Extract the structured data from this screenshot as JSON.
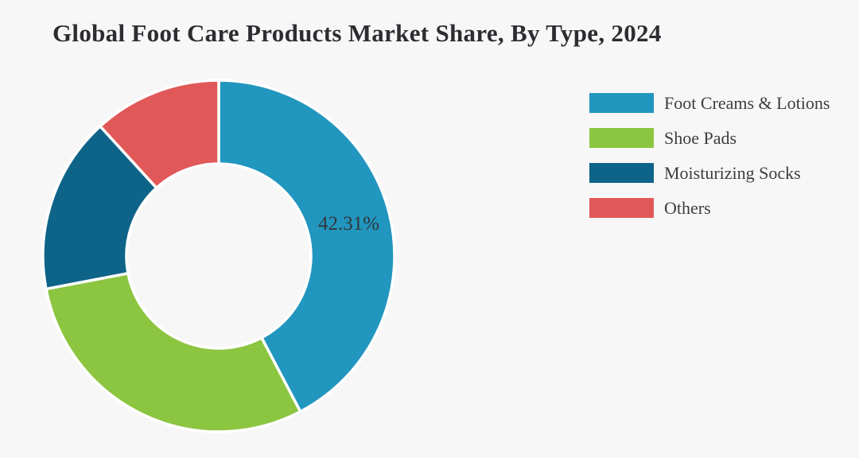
{
  "page": {
    "background_color": "#f7f7f7"
  },
  "header": {
    "title": "Global Foot Care Products Market Share, By Type, 2024"
  },
  "chart_data": {
    "type": "pie",
    "subtype": "donut",
    "title": "Global Foot Care Products Market Share, By Type, 2024",
    "categories": [
      "Foot Creams & Lotions",
      "Shoe Pads",
      "Moisturizing Socks",
      "Others"
    ],
    "values": [
      42.31,
      29.69,
      16.22,
      11.78
    ],
    "unit": "%",
    "colors": [
      "#2196bf",
      "#8cc540",
      "#0e6488",
      "#e15858"
    ],
    "data_labels": [
      "42.31%",
      "",
      "",
      ""
    ],
    "start_angle_deg": 0,
    "direction": "clockwise",
    "inner_radius_ratio": 0.52,
    "slice_gap_color": "#ffffff",
    "legend_position": "right",
    "legend": [
      {
        "label": "Foot Creams & Lotions",
        "color": "#2196bf"
      },
      {
        "label": "Shoe Pads",
        "color": "#8cc540"
      },
      {
        "label": "Moisturizing Socks",
        "color": "#0e6488"
      },
      {
        "label": "Others",
        "color": "#e15858"
      }
    ]
  }
}
